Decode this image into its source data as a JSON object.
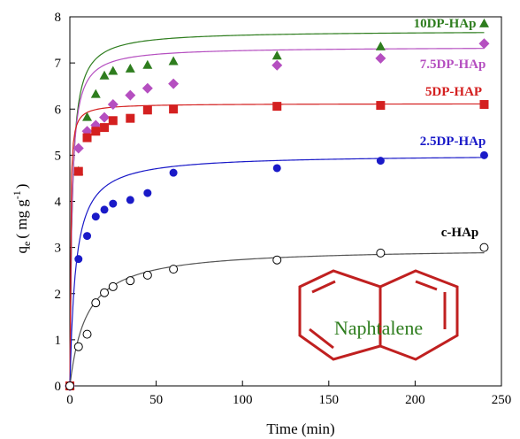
{
  "chart_data": {
    "type": "scatter",
    "xlabel": "Time (min)",
    "ylabel_main": "q",
    "ylabel_sub": "e",
    "ylabel_unit": "( mg g",
    "ylabel_sup": "-1",
    "ylabel_close": ")",
    "xlim": [
      0,
      250
    ],
    "ylim": [
      0,
      8
    ],
    "xticks": [
      0,
      50,
      100,
      150,
      200,
      250
    ],
    "yticks": [
      0,
      1,
      2,
      3,
      4,
      5,
      6,
      7,
      8
    ],
    "grid": false,
    "series": [
      {
        "name": "10DP-HAp",
        "color": "#2e7d1e",
        "marker": "triangle",
        "x": [
          0,
          5,
          10,
          15,
          20,
          25,
          35,
          45,
          60,
          120,
          180,
          240
        ],
        "y": [
          0,
          4.65,
          5.82,
          6.32,
          6.72,
          6.82,
          6.87,
          6.95,
          7.03,
          7.15,
          7.35,
          7.85
        ],
        "fit": {
          "qe": 7.7,
          "k": 0.1
        }
      },
      {
        "name": "7.5DP-HAp",
        "color": "#b54fc0",
        "marker": "diamond",
        "x": [
          0,
          5,
          10,
          15,
          20,
          25,
          35,
          45,
          60,
          120,
          180,
          240
        ],
        "y": [
          0,
          5.15,
          5.52,
          5.65,
          5.82,
          6.1,
          6.3,
          6.45,
          6.55,
          6.95,
          7.1,
          7.42
        ],
        "fit": {
          "qe": 7.35,
          "k": 0.12
        }
      },
      {
        "name": "5DP-HAP",
        "color": "#d42020",
        "marker": "square",
        "x": [
          0,
          5,
          10,
          15,
          20,
          25,
          35,
          45,
          60,
          120,
          180,
          240
        ],
        "y": [
          0,
          4.65,
          5.38,
          5.52,
          5.6,
          5.75,
          5.8,
          5.98,
          6.0,
          6.06,
          6.08,
          6.1
        ],
        "fit": {
          "qe": 6.12,
          "k": 0.5
        }
      },
      {
        "name": "2.5DP-HAp",
        "color": "#1a1ac8",
        "marker": "circle",
        "x": [
          0,
          5,
          10,
          15,
          20,
          25,
          35,
          45,
          60,
          120,
          180,
          240
        ],
        "y": [
          0,
          2.75,
          3.25,
          3.67,
          3.82,
          3.95,
          4.03,
          4.18,
          4.62,
          4.72,
          4.88,
          5.0
        ],
        "fit": {
          "qe": 5.02,
          "k": 0.06
        }
      },
      {
        "name": "c-HAp",
        "color": "#000000",
        "marker": "open-circle",
        "x": [
          0,
          5,
          10,
          15,
          20,
          25,
          35,
          45,
          60,
          120,
          180,
          240
        ],
        "y": [
          0,
          0.85,
          1.12,
          1.8,
          2.02,
          2.15,
          2.28,
          2.4,
          2.53,
          2.73,
          2.88,
          3.0
        ],
        "fit": {
          "qe": 3.0,
          "k": 0.035
        }
      }
    ]
  },
  "annotation": {
    "molecule_name": "Naphtalene",
    "outline_color": "#c02020"
  }
}
